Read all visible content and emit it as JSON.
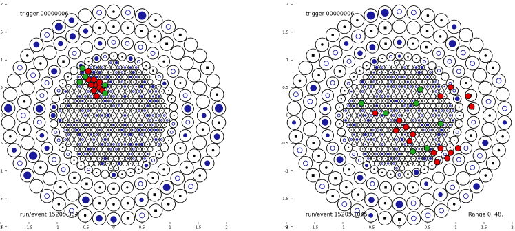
{
  "chart_data": [
    {
      "type": "scatter",
      "title": "trigger 00000006",
      "footer": "run/event  15205   364",
      "xlim": [
        -2,
        2
      ],
      "ylim": [
        -2,
        2
      ],
      "xticks": [
        -2,
        -1.5,
        -1,
        -0.5,
        0,
        0.5,
        1,
        1.5,
        2
      ],
      "yticks": [
        -2,
        -1.5,
        -1,
        -0.5,
        0,
        0.5,
        1,
        1.5,
        2
      ],
      "series": [
        {
          "color": "#e00000",
          "x": [
            -0.45,
            -0.35,
            -0.3,
            -0.4,
            -0.25,
            -0.35,
            -0.2,
            -0.3,
            -0.45,
            -0.25
          ],
          "values": [
            0.8,
            0.65,
            0.55,
            0.55,
            0.5,
            0.45,
            0.45,
            0.35,
            0.65,
            0.6
          ]
        },
        {
          "color": "#22aa22",
          "x": [
            -0.55,
            -0.5,
            -0.15,
            -0.15,
            -0.6
          ],
          "values": [
            0.85,
            0.7,
            0.55,
            0.4,
            0.6
          ]
        }
      ]
    },
    {
      "type": "scatter",
      "title": "trigger 00000006",
      "footer": "run/event  15205   1045",
      "annotation": "Range   0.    48.",
      "xlim": [
        -2,
        2
      ],
      "ylim": [
        -2,
        2
      ],
      "xticks": [
        -2,
        -1.5,
        -1,
        -0.5,
        0,
        0.5,
        1,
        1.5,
        2
      ],
      "yticks": [
        -2,
        -1.5,
        -1,
        -0.5,
        0,
        0.5,
        1,
        1.5,
        2
      ],
      "series": [
        {
          "color": "#e00000",
          "x": [
            0.91,
            1.22,
            1.28,
            0,
            0.12,
            -0.06,
            0.24,
            0.18,
            0.61,
            0.73,
            0.91,
            1.04,
            0.85,
            0.67,
            0.73,
            -0.43
          ],
          "values": [
            0.51,
            0.35,
            0.16,
            -0.09,
            -0.21,
            -0.27,
            -0.34,
            -0.46,
            -0.67,
            -0.59,
            -0.67,
            -0.59,
            -0.77,
            -0.84,
            0.35,
            0.04
          ]
        },
        {
          "color": "#22aa22",
          "x": [
            -0.24,
            0.3,
            0.73,
            0.49,
            0.24,
            0.37,
            -0.67
          ],
          "values": [
            0.04,
            0.22,
            -0.15,
            -0.59,
            -0.65,
            0.47,
            0.22
          ]
        }
      ]
    }
  ]
}
